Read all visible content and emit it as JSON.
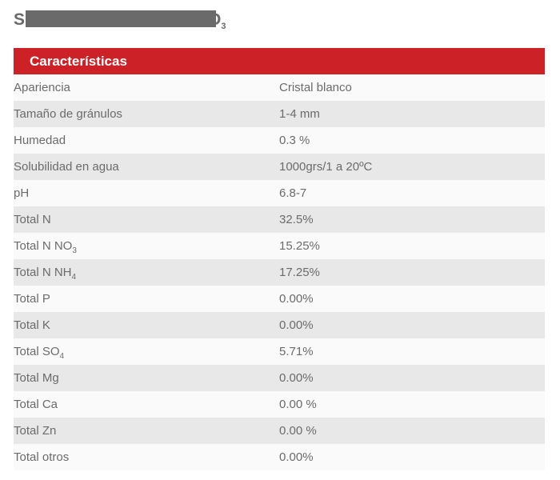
{
  "page": {
    "title": {
      "prefix": "S",
      "suffix": "O",
      "suffix_sub": "3",
      "redacted": true
    }
  },
  "table": {
    "header": "Características",
    "colors": {
      "header_bg": "#cc2127",
      "row_odd_bg": "#fafafa",
      "row_even_bg": "#e8e8e8",
      "text": "#6b6b6b",
      "header_text": "#ffffff",
      "title_text": "#6a6a6a"
    },
    "rows": [
      {
        "label": "Apariencia",
        "sub": "",
        "value": "Cristal blanco"
      },
      {
        "label": "Tamaño de gránulos",
        "sub": "",
        "value": "1-4 mm"
      },
      {
        "label": "Humedad",
        "sub": "",
        "value": "0.3 %"
      },
      {
        "label": "Solubilidad en agua",
        "sub": "",
        "value": "1000grs/1 a 20ºC"
      },
      {
        "label": "pH",
        "sub": "",
        "value": "6.8-7"
      },
      {
        "label": "Total N",
        "sub": "",
        "value": "32.5%"
      },
      {
        "label": "Total N NO",
        "sub": "3",
        "value": "15.25%"
      },
      {
        "label": "Total N NH",
        "sub": "4",
        "value": "17.25%"
      },
      {
        "label": "Total P",
        "sub": "",
        "value": "0.00%"
      },
      {
        "label": "Total K",
        "sub": "",
        "value": "0.00%"
      },
      {
        "label": "Total SO",
        "sub": "4",
        "value": "5.71%"
      },
      {
        "label": "Total Mg",
        "sub": "",
        "value": "0.00%"
      },
      {
        "label": "Total Ca",
        "sub": "",
        "value": "0.00 %"
      },
      {
        "label": "Total Zn",
        "sub": "",
        "value": "0.00 %"
      },
      {
        "label": "Total otros",
        "sub": "",
        "value": "0.00%"
      }
    ]
  }
}
